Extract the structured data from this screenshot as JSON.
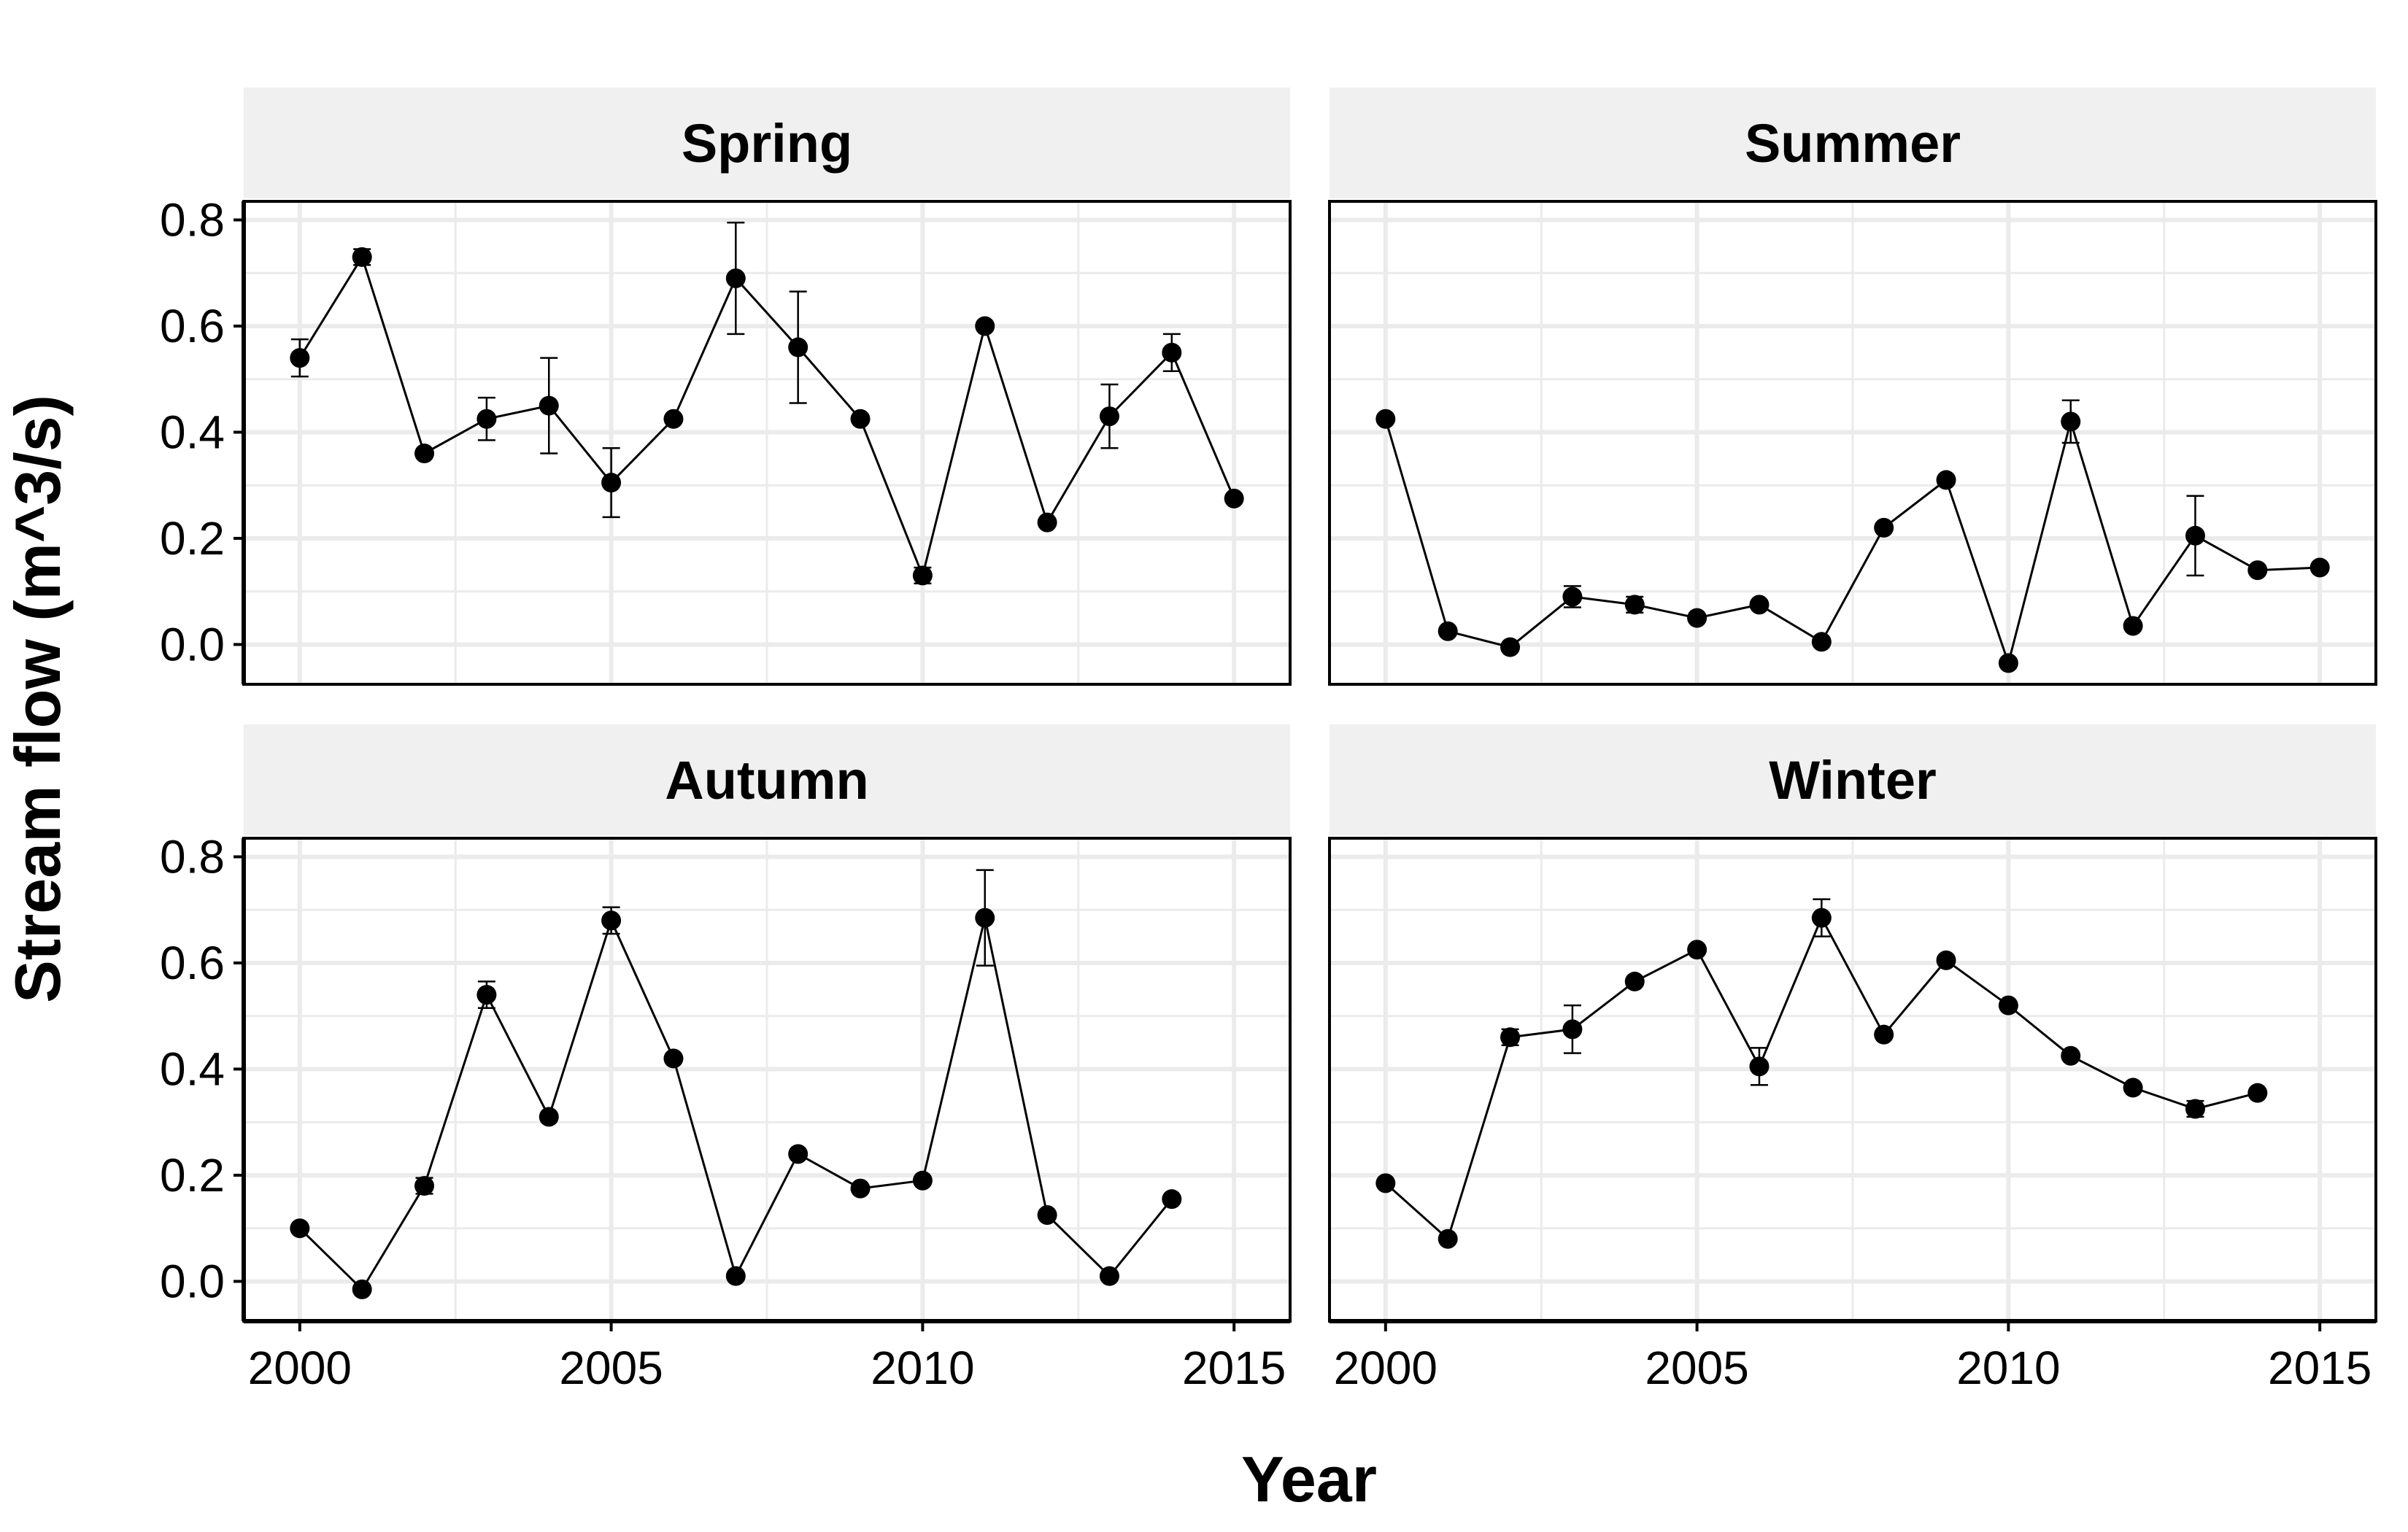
{
  "chart_data": {
    "type": "line",
    "layout": "2x2 facet grid",
    "xlabel": "Year",
    "ylabel": "Stream flow (m^3/s)",
    "xlim": [
      1999.1,
      2015.9
    ],
    "ylim": [
      -0.075,
      0.835
    ],
    "x_ticks": [
      2000,
      2005,
      2010,
      2015
    ],
    "y_ticks": [
      0.0,
      0.2,
      0.4,
      0.6,
      0.8
    ],
    "y_tick_labels": [
      "0.0",
      "0.2",
      "0.4",
      "0.6",
      "0.8"
    ],
    "grid": true,
    "legend": "none",
    "colors": {
      "line": "#000000",
      "point": "#000000",
      "panel_background": "#ffffff",
      "grid": "#ebebeb",
      "strip_background": "#f0f0f0"
    },
    "panels": [
      {
        "title": "Spring",
        "x": [
          2000,
          2001,
          2002,
          2003,
          2004,
          2005,
          2006,
          2007,
          2008,
          2009,
          2010,
          2011,
          2012,
          2013,
          2014,
          2015
        ],
        "y": [
          0.54,
          0.73,
          0.36,
          0.425,
          0.45,
          0.305,
          0.425,
          0.69,
          0.56,
          0.425,
          0.13,
          0.6,
          0.23,
          0.43,
          0.55,
          0.275
        ],
        "err": [
          0.035,
          0.015,
          0.0,
          0.04,
          0.09,
          0.065,
          0.0,
          0.105,
          0.105,
          0.0,
          0.015,
          0.0,
          0.0,
          0.06,
          0.035,
          0.0
        ]
      },
      {
        "title": "Summer",
        "x": [
          2000,
          2001,
          2002,
          2003,
          2004,
          2005,
          2006,
          2007,
          2008,
          2009,
          2010,
          2011,
          2012,
          2013,
          2014,
          2015
        ],
        "y": [
          0.425,
          0.025,
          -0.005,
          0.09,
          0.075,
          0.05,
          0.075,
          0.005,
          0.22,
          0.31,
          -0.035,
          0.42,
          0.035,
          0.205,
          0.14,
          0.145
        ],
        "err": [
          0.0,
          0.0,
          0.0,
          0.02,
          0.015,
          0.0,
          0.0,
          0.0,
          0.0,
          0.0,
          0.0,
          0.04,
          0.0,
          0.075,
          0.0,
          0.0
        ]
      },
      {
        "title": "Autumn",
        "x": [
          2000,
          2001,
          2002,
          2003,
          2004,
          2005,
          2006,
          2007,
          2008,
          2009,
          2010,
          2011,
          2012,
          2013,
          2014
        ],
        "y": [
          0.1,
          -0.015,
          0.18,
          0.54,
          0.31,
          0.68,
          0.42,
          0.01,
          0.24,
          0.175,
          0.19,
          0.685,
          0.125,
          0.01,
          0.155
        ],
        "err": [
          0.0,
          0.0,
          0.015,
          0.025,
          0.0,
          0.025,
          0.0,
          0.0,
          0.0,
          0.0,
          0.0,
          0.09,
          0.0,
          0.0,
          0.0
        ]
      },
      {
        "title": "Winter",
        "x": [
          2000,
          2001,
          2002,
          2003,
          2004,
          2005,
          2006,
          2007,
          2008,
          2009,
          2010,
          2011,
          2012,
          2013,
          2014
        ],
        "y": [
          0.185,
          0.08,
          0.46,
          0.475,
          0.565,
          0.625,
          0.405,
          0.685,
          0.465,
          0.605,
          0.52,
          0.425,
          0.365,
          0.325,
          0.355
        ],
        "err": [
          0.0,
          0.0,
          0.015,
          0.045,
          0.0,
          0.0,
          0.035,
          0.035,
          0.0,
          0.0,
          0.0,
          0.0,
          0.0,
          0.015,
          0.0
        ]
      }
    ]
  }
}
